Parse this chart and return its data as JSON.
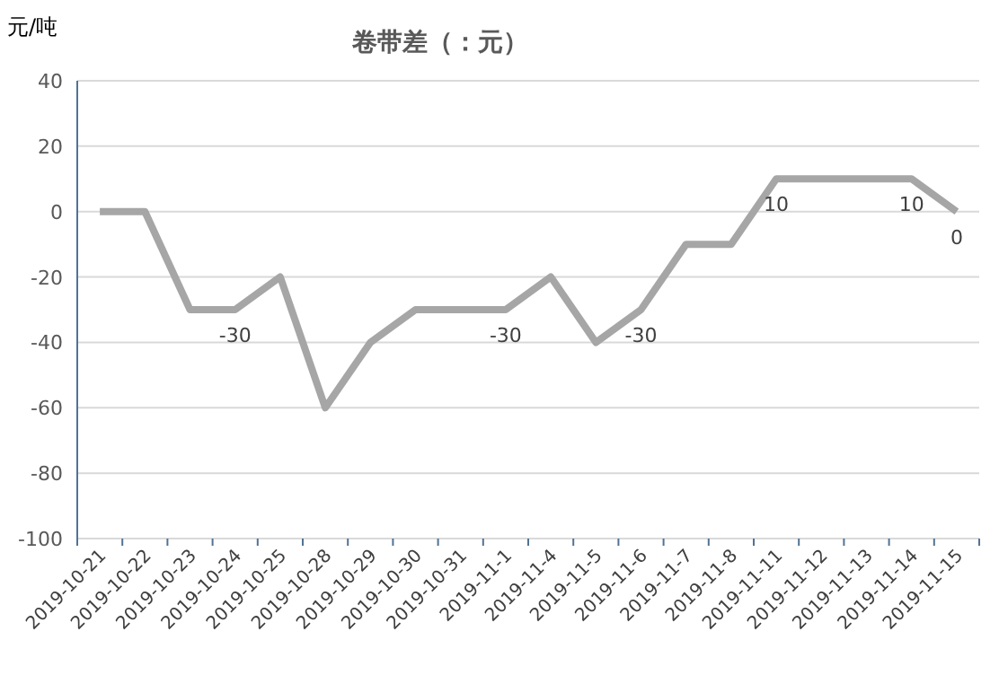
{
  "chart_data": {
    "type": "line",
    "title": "卷带差（：元）",
    "ylabel": "元/吨",
    "categories": [
      "2019-10-21",
      "2019-10-22",
      "2019-10-23",
      "2019-10-24",
      "2019-10-25",
      "2019-10-28",
      "2019-10-29",
      "2019-10-30",
      "2019-10-31",
      "2019-11-1",
      "2019-11-4",
      "2019-11-5",
      "2019-11-6",
      "2019-11-7",
      "2019-11-8",
      "2019-11-11",
      "2019-11-12",
      "2019-11-13",
      "2019-11-14",
      "2019-11-15"
    ],
    "series": [
      {
        "color": "#a6a6a6",
        "values": [
          0,
          0,
          -30,
          -30,
          -20,
          -60,
          -40,
          -30,
          -30,
          -30,
          -20,
          -40,
          -30,
          -10,
          -10,
          10,
          10,
          10,
          10,
          0
        ],
        "value_labels": [
          null,
          null,
          null,
          "-30",
          null,
          null,
          null,
          null,
          null,
          "-30",
          null,
          null,
          "-30",
          null,
          null,
          "10",
          null,
          null,
          "10",
          "0"
        ]
      }
    ],
    "ylim": [
      -100,
      40
    ],
    "yticks": [
      -100,
      -80,
      -60,
      -40,
      -20,
      0,
      20,
      40
    ],
    "grid": "y",
    "marker": "none",
    "line_style": "solid"
  }
}
